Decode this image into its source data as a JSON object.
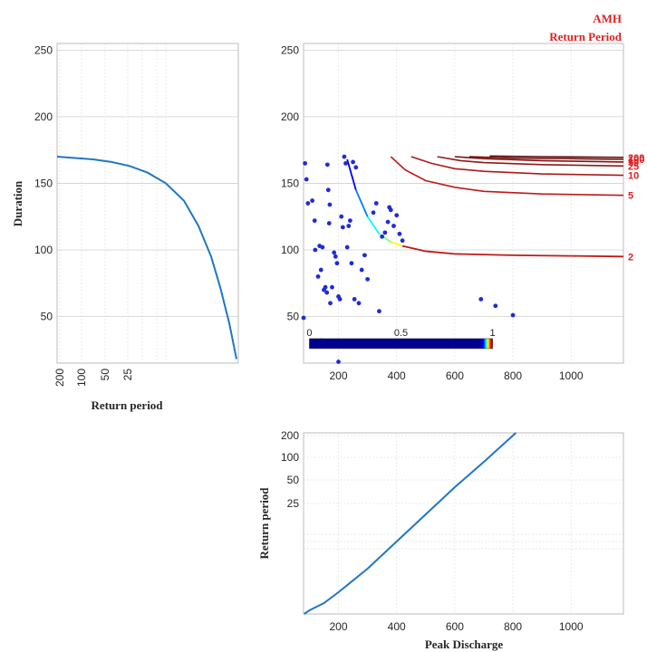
{
  "chart_data": [
    {
      "type": "line",
      "panel": "left",
      "title": "",
      "xlabel": "Return period",
      "ylabel": "Duration",
      "ylim": [
        15,
        255
      ],
      "yticks": [
        50,
        100,
        150,
        200,
        250
      ],
      "xticks": [
        "200",
        "100",
        "50",
        "25"
      ],
      "grid": true,
      "series": [
        {
          "color": "#1f77c4",
          "points": [
            [
              0.0,
              170
            ],
            [
              0.1,
              169
            ],
            [
              0.2,
              168
            ],
            [
              0.3,
              166
            ],
            [
              0.4,
              163
            ],
            [
              0.5,
              158
            ],
            [
              0.6,
              150
            ],
            [
              0.7,
              137
            ],
            [
              0.78,
              118
            ],
            [
              0.85,
              95
            ],
            [
              0.9,
              72
            ],
            [
              0.95,
              45
            ],
            [
              0.99,
              18
            ]
          ]
        }
      ]
    },
    {
      "type": "scatter",
      "panel": "main",
      "title": "AMH",
      "subtitle": "Return Period",
      "xlim": [
        80,
        1180
      ],
      "ylim": [
        15,
        255
      ],
      "xticks": [
        200,
        400,
        600,
        800,
        1000
      ],
      "yticks": [
        50,
        100,
        150,
        200,
        250
      ],
      "grid": true,
      "points_color": "#1f2bd6",
      "points": [
        [
          85,
          165
        ],
        [
          90,
          153
        ],
        [
          95,
          135
        ],
        [
          110,
          137
        ],
        [
          118,
          122
        ],
        [
          120,
          100
        ],
        [
          130,
          80
        ],
        [
          135,
          103
        ],
        [
          140,
          85
        ],
        [
          145,
          102
        ],
        [
          150,
          70
        ],
        [
          155,
          72
        ],
        [
          160,
          68
        ],
        [
          162,
          164
        ],
        [
          165,
          145
        ],
        [
          168,
          120
        ],
        [
          170,
          134
        ],
        [
          172,
          60
        ],
        [
          178,
          72
        ],
        [
          185,
          98
        ],
        [
          190,
          95
        ],
        [
          195,
          90
        ],
        [
          200,
          65
        ],
        [
          205,
          63
        ],
        [
          210,
          125
        ],
        [
          215,
          117
        ],
        [
          220,
          170
        ],
        [
          225,
          165
        ],
        [
          230,
          102
        ],
        [
          235,
          118
        ],
        [
          240,
          122
        ],
        [
          245,
          90
        ],
        [
          250,
          166
        ],
        [
          255,
          63
        ],
        [
          260,
          162
        ],
        [
          270,
          60
        ],
        [
          280,
          85
        ],
        [
          290,
          96
        ],
        [
          300,
          78
        ],
        [
          320,
          128
        ],
        [
          330,
          135
        ],
        [
          340,
          54
        ],
        [
          350,
          110
        ],
        [
          360,
          113
        ],
        [
          370,
          121
        ],
        [
          375,
          132
        ],
        [
          380,
          130
        ],
        [
          390,
          118
        ],
        [
          400,
          126
        ],
        [
          410,
          112
        ],
        [
          420,
          107
        ],
        [
          690,
          63
        ],
        [
          740,
          58
        ],
        [
          800,
          51
        ],
        [
          80,
          49
        ],
        [
          200,
          16
        ],
        [
          140,
          32
        ]
      ],
      "contours": [
        {
          "label": "2",
          "color": "#c01818",
          "colored": true,
          "points": [
            [
              230,
              168
            ],
            [
              260,
              145
            ],
            [
              300,
              125
            ],
            [
              340,
              112
            ],
            [
              380,
              106
            ],
            [
              420,
              103
            ],
            [
              500,
              99
            ],
            [
              600,
              97
            ],
            [
              800,
              96
            ],
            [
              1000,
              95.5
            ],
            [
              1180,
              95
            ]
          ]
        },
        {
          "label": "5",
          "color": "#c01818",
          "points": [
            [
              380,
              170
            ],
            [
              430,
              160
            ],
            [
              500,
              152
            ],
            [
              600,
              147
            ],
            [
              700,
              144
            ],
            [
              900,
              142
            ],
            [
              1180,
              141
            ]
          ]
        },
        {
          "label": "10",
          "color": "#b01818",
          "points": [
            [
              450,
              170
            ],
            [
              520,
              165
            ],
            [
              600,
              161
            ],
            [
              700,
              159
            ],
            [
              900,
              157
            ],
            [
              1180,
              156
            ]
          ]
        },
        {
          "label": "25",
          "color": "#901818",
          "points": [
            [
              540,
              170
            ],
            [
              620,
              167
            ],
            [
              700,
              165.5
            ],
            [
              900,
              164
            ],
            [
              1180,
              163
            ]
          ]
        },
        {
          "label": "50",
          "color": "#801010",
          "points": [
            [
              600,
              170
            ],
            [
              700,
              168.5
            ],
            [
              900,
              167
            ],
            [
              1180,
              166
            ]
          ]
        },
        {
          "label": "100",
          "color": "#701010",
          "points": [
            [
              650,
              170
            ],
            [
              800,
              169
            ],
            [
              1000,
              168.5
            ],
            [
              1180,
              168
            ]
          ]
        },
        {
          "label": "200",
          "color": "#601010",
          "points": [
            [
              720,
              170.5
            ],
            [
              900,
              170
            ],
            [
              1180,
              169.5
            ]
          ]
        }
      ],
      "colorbar": {
        "ticks": [
          "0",
          "0.5",
          "1"
        ],
        "colors": [
          "#00008f",
          "#0000ff",
          "#00ffff",
          "#ffff00",
          "#ff0000",
          "#800000"
        ]
      }
    },
    {
      "type": "line",
      "panel": "bottom",
      "title": "",
      "xlabel": "Peak Discharge",
      "ylabel": "Return period",
      "xlim": [
        80,
        1180
      ],
      "xticks": [
        200,
        400,
        600,
        800,
        1000
      ],
      "yticks": [
        "200",
        "100",
        "50",
        "25"
      ],
      "grid": true,
      "series": [
        {
          "color": "#1f77c4",
          "points": [
            [
              82,
              0.0
            ],
            [
              100,
              0.02
            ],
            [
              150,
              0.06
            ],
            [
              200,
              0.12
            ],
            [
              300,
              0.25
            ],
            [
              400,
              0.4
            ],
            [
              500,
              0.55
            ],
            [
              600,
              0.7
            ],
            [
              700,
              0.84
            ],
            [
              810,
              1.0
            ]
          ]
        }
      ]
    }
  ]
}
